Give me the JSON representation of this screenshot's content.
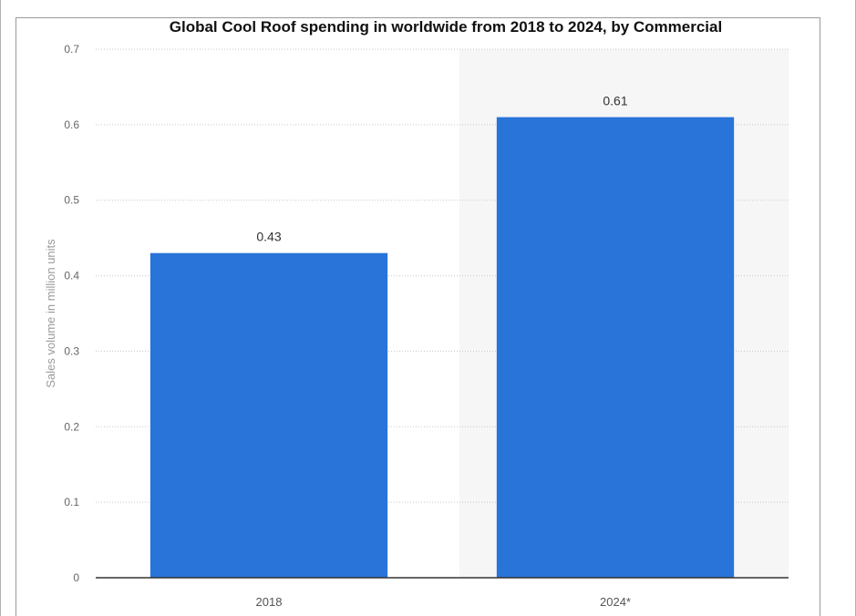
{
  "chart_data": {
    "type": "bar",
    "title": "Global Cool Roof spending in worldwide from 2018 to 2024, by Commercial",
    "ylabel": "Sales volume in million units",
    "xlabel": "",
    "categories": [
      "2018",
      "2024*"
    ],
    "values": [
      0.43,
      0.61
    ],
    "data_labels": [
      "0.43",
      "0.61"
    ],
    "ylim": [
      0,
      0.7
    ],
    "yticks": [
      "0",
      "0.1",
      "0.2",
      "0.3",
      "0.4",
      "0.5",
      "0.6",
      "0.7"
    ],
    "grid": true,
    "bar_color": "#2874d9",
    "forecast_shading_color": "#f6f6f6"
  }
}
